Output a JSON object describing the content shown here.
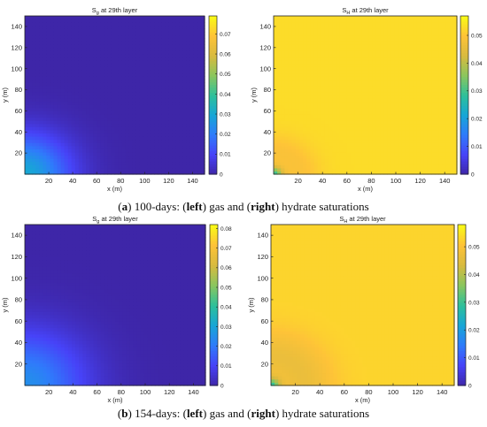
{
  "captions": [
    {
      "label": "a",
      "pre": "100-days: (",
      "left_word": "left",
      "mid": ") gas and (",
      "right_word": "right",
      "post": ") hydrate saturations"
    },
    {
      "label": "b",
      "pre": "154-days: (",
      "left_word": "left",
      "mid": ") gas and (",
      "right_word": "right",
      "post": ") hydrate saturations"
    }
  ],
  "colormap": [
    "#3e26a8",
    "#4743f8",
    "#2f7bfb",
    "#17a6d6",
    "#2ec09a",
    "#8bc65e",
    "#d9ba3f",
    "#fec338",
    "#f9fb15"
  ],
  "chart_data": [
    {
      "type": "heatmap",
      "panel": "a-left",
      "title_main": "S",
      "title_sub": "g",
      "title_rest": " at 29th layer",
      "xlabel": "x (m)",
      "ylabel": "y (m)",
      "xlim": [
        0,
        150
      ],
      "ylim": [
        0,
        150
      ],
      "xticks": [
        20,
        40,
        60,
        80,
        100,
        120,
        140
      ],
      "yticks": [
        20,
        40,
        60,
        80,
        100,
        120,
        140
      ],
      "clim": [
        0,
        0.079
      ],
      "cbar_ticks": [
        0,
        0.01,
        0.02,
        0.03,
        0.04,
        0.05,
        0.06,
        0.07
      ],
      "cbar_labels": [
        "0",
        "0.01",
        "0.02",
        "0.03",
        "0.04",
        "0.05",
        "0.06",
        "0.07"
      ],
      "field": {
        "background": 0.0,
        "peak": 0.03,
        "radius": 38,
        "shape": "gaussian-plume"
      }
    },
    {
      "type": "heatmap",
      "panel": "a-right",
      "title_main": "S",
      "title_sub": "H",
      "title_rest": " at 29th layer",
      "xlabel": "x (m)",
      "ylabel": "y (m)",
      "xlim": [
        0,
        150
      ],
      "ylim": [
        0,
        150
      ],
      "xticks": [
        20,
        40,
        60,
        80,
        100,
        120,
        140
      ],
      "yticks": [
        20,
        40,
        60,
        80,
        100,
        120,
        140
      ],
      "clim": [
        0,
        0.057
      ],
      "cbar_ticks": [
        0,
        0.01,
        0.02,
        0.03,
        0.04,
        0.05
      ],
      "cbar_labels": [
        "0",
        "0.01",
        "0.02",
        "0.03",
        "0.04",
        "0.05"
      ],
      "field": {
        "background": 0.053,
        "ring": 0.049,
        "radius": 33,
        "core": 0.03,
        "shape": "hydrate-ring"
      }
    },
    {
      "type": "heatmap",
      "panel": "b-left",
      "title_main": "S",
      "title_sub": "g",
      "title_rest": " at 29th layer",
      "xlabel": "x (m)",
      "ylabel": "y (m)",
      "xlim": [
        0,
        150
      ],
      "ylim": [
        0,
        150
      ],
      "xticks": [
        20,
        40,
        60,
        80,
        100,
        120,
        140
      ],
      "yticks": [
        20,
        40,
        60,
        80,
        100,
        120,
        140
      ],
      "clim": [
        0,
        0.082
      ],
      "cbar_ticks": [
        0,
        0.01,
        0.02,
        0.03,
        0.04,
        0.05,
        0.06,
        0.07,
        0.08
      ],
      "cbar_labels": [
        "0",
        "0.01",
        "0.02",
        "0.03",
        "0.04",
        "0.05",
        "0.06",
        "0.07",
        "0.08"
      ],
      "field": {
        "background": 0.0,
        "peak": 0.025,
        "radius": 50,
        "shape": "gaussian-plume"
      }
    },
    {
      "type": "heatmap",
      "panel": "b-right",
      "title_main": "S",
      "title_sub": "H",
      "title_rest": " at 29th layer",
      "xlabel": "x (m)",
      "ylabel": "y (m)",
      "xlim": [
        0,
        150
      ],
      "ylim": [
        0,
        150
      ],
      "xticks": [
        20,
        40,
        60,
        80,
        100,
        120,
        140
      ],
      "yticks": [
        20,
        40,
        60,
        80,
        100,
        120,
        140
      ],
      "clim": [
        0,
        0.058
      ],
      "cbar_ticks": [
        0,
        0.01,
        0.02,
        0.03,
        0.04,
        0.05
      ],
      "cbar_labels": [
        "0",
        "0.01",
        "0.02",
        "0.03",
        "0.04",
        "0.05"
      ],
      "field": {
        "background": 0.053,
        "ring": 0.047,
        "radius": 45,
        "core": 0.03,
        "shape": "hydrate-ring"
      }
    }
  ]
}
